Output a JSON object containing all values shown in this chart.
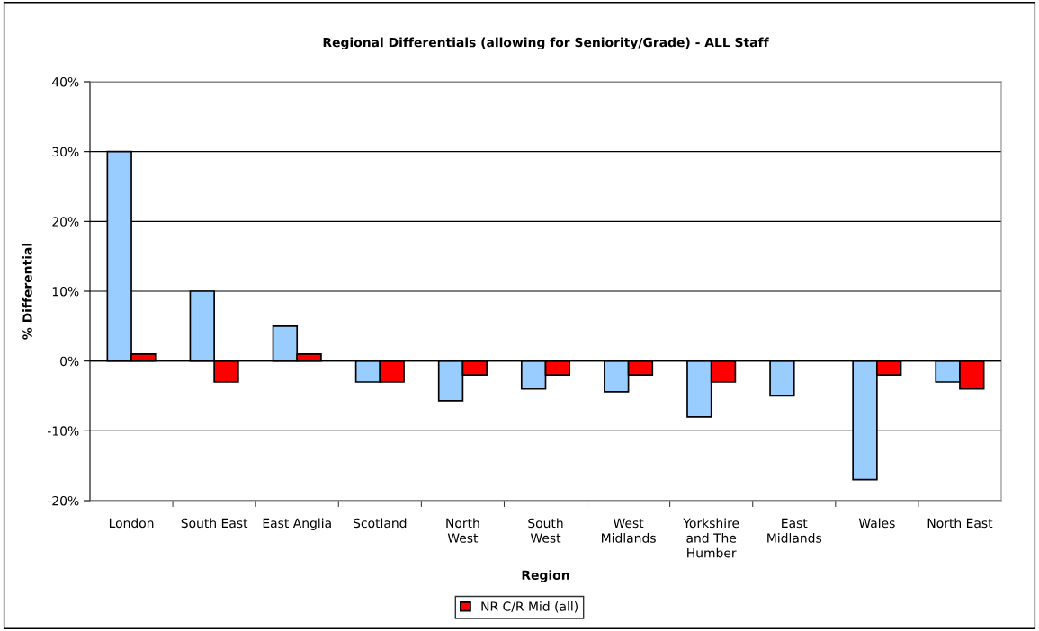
{
  "chart_data": {
    "type": "bar",
    "title": "Regional Differentials (allowing for Seniority/Grade) - ALL Staff",
    "xlabel": "Region",
    "ylabel": "% Differential",
    "categories": [
      "London",
      "South East",
      "East Anglia",
      "Scotland",
      "North\nWest",
      "South\nWest",
      "West\nMidlands",
      "Yorkshire\nand The\nHumber",
      "East\nMidlands",
      "Wales",
      "North East"
    ],
    "series": [
      {
        "color": "#99ccff",
        "values": [
          30,
          10,
          5,
          -3,
          -5.7,
          -4,
          -4.4,
          -8,
          -5,
          -17,
          -3
        ]
      },
      {
        "name": "NR C/R Mid (all)",
        "color": "#ff0000",
        "values": [
          1,
          -3,
          1,
          -3,
          -2,
          -2,
          -2,
          -3,
          null,
          -2,
          -4
        ]
      }
    ],
    "ylim": [
      -20,
      40
    ],
    "yticks": [
      {
        "value": -20,
        "label": "-20%"
      },
      {
        "value": -10,
        "label": "-10%"
      },
      {
        "value": 0,
        "label": "0%"
      },
      {
        "value": 10,
        "label": "10%"
      },
      {
        "value": 20,
        "label": "20%"
      },
      {
        "value": 30,
        "label": "30%"
      },
      {
        "value": 40,
        "label": "40%"
      }
    ],
    "grid": "y",
    "legend": "bottom"
  }
}
